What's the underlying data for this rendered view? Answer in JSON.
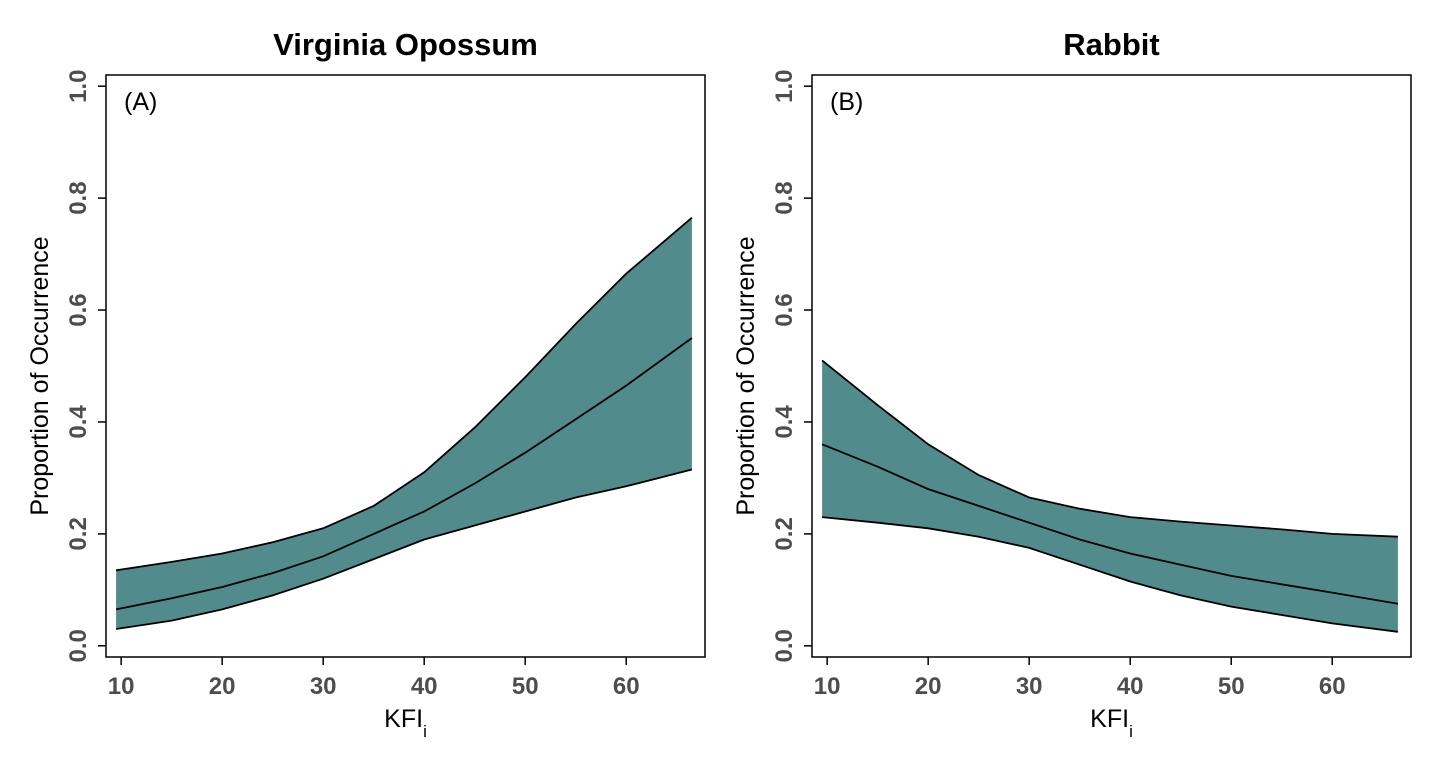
{
  "colors": {
    "band": "#528b8b",
    "line": "#000000",
    "tick_text": "#4d4d4d"
  },
  "chart_data": [
    {
      "type": "line",
      "title": "Virginia Opossum",
      "panel_label": "(A)",
      "xlabel": "KFI",
      "xlabel_sub": "i",
      "ylabel": "Proportion of Occurrence",
      "xlim": [
        8.5,
        67.8
      ],
      "ylim": [
        -0.02,
        1.02
      ],
      "xticks": [
        10,
        20,
        30,
        40,
        50,
        60
      ],
      "yticks": [
        "0.0",
        "0.2",
        "0.4",
        "0.6",
        "0.8",
        "1.0"
      ],
      "x": [
        9.5,
        15,
        20,
        25,
        30,
        35,
        40,
        45,
        50,
        55,
        60,
        66.5
      ],
      "fit": [
        0.065,
        0.085,
        0.105,
        0.13,
        0.16,
        0.2,
        0.24,
        0.29,
        0.345,
        0.405,
        0.465,
        0.55
      ],
      "lower": [
        0.03,
        0.045,
        0.065,
        0.09,
        0.12,
        0.155,
        0.19,
        0.215,
        0.24,
        0.265,
        0.285,
        0.315
      ],
      "upper": [
        0.135,
        0.15,
        0.165,
        0.185,
        0.21,
        0.25,
        0.31,
        0.39,
        0.48,
        0.575,
        0.665,
        0.765
      ]
    },
    {
      "type": "line",
      "title": "Rabbit",
      "panel_label": "(B)",
      "xlabel": "KFI",
      "xlabel_sub": "i",
      "ylabel": "Proportion of Occurrence",
      "xlim": [
        8.5,
        67.8
      ],
      "ylim": [
        -0.02,
        1.02
      ],
      "xticks": [
        10,
        20,
        30,
        40,
        50,
        60
      ],
      "yticks": [
        "0.0",
        "0.2",
        "0.4",
        "0.6",
        "0.8",
        "1.0"
      ],
      "x": [
        9.5,
        15,
        20,
        25,
        30,
        35,
        40,
        45,
        50,
        55,
        60,
        66.5
      ],
      "fit": [
        0.36,
        0.32,
        0.28,
        0.25,
        0.22,
        0.19,
        0.165,
        0.145,
        0.125,
        0.11,
        0.095,
        0.075
      ],
      "lower": [
        0.23,
        0.22,
        0.21,
        0.195,
        0.175,
        0.145,
        0.115,
        0.09,
        0.07,
        0.055,
        0.04,
        0.025
      ],
      "upper": [
        0.51,
        0.43,
        0.36,
        0.305,
        0.265,
        0.245,
        0.23,
        0.222,
        0.215,
        0.208,
        0.2,
        0.195
      ]
    }
  ]
}
